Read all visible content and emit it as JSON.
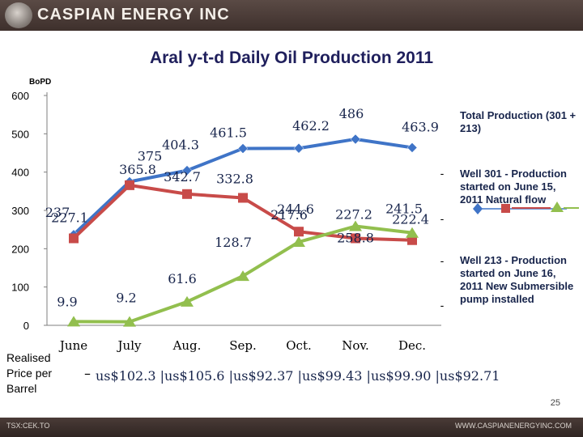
{
  "header": {
    "company": "CASPIAN ENERGY INC"
  },
  "footer": {
    "ticker": "TSX:CEK.TO",
    "website": "WWW.CASPIANENERGYINC.COM",
    "page": "25"
  },
  "price": {
    "row_label": "Realised Price per Barrel",
    "separator": "–",
    "values": [
      "us$102.3",
      "us$105.6",
      "us$92.37",
      "us$99.43",
      "us$99.90",
      "us$92.71"
    ]
  },
  "notes": {
    "total": "Total Production (301 + 213)",
    "well301": "Well 301 - Production started on June 15, 2011 Natural flow",
    "well213": "Well 213 - Production started on June 16, 2011 New Submersible pump installed"
  },
  "colors": {
    "total": "#3f74c7",
    "well301": "#c84b49",
    "well213": "#92bf4e",
    "axis": "#7f7f7f",
    "title": "#1f1f5c",
    "label_text": "#17244b"
  },
  "chart_data": {
    "type": "line",
    "title": "Aral  y-t-d  Daily Oil Production 2011",
    "ylabel": "BoPD",
    "ylim": [
      0,
      600
    ],
    "yticks": [
      0,
      100,
      200,
      300,
      400,
      500,
      600
    ],
    "categories": [
      "June",
      "July",
      "Aug.",
      "Sep.",
      "Oct.",
      "Nov.",
      "Dec."
    ],
    "series": [
      {
        "name": "Total Production (301 + 213)",
        "values": [
          237,
          375,
          404.3,
          461.5,
          462.2,
          486,
          463.9
        ],
        "labels": [
          "237",
          "375",
          "404.3",
          "461.5",
          "462.2",
          "486",
          "463.9"
        ],
        "marker": "diamond",
        "color": "#3f74c7"
      },
      {
        "name": "Well 301",
        "values": [
          227.1,
          365.8,
          342.7,
          332.8,
          244.6,
          227.2,
          222.4
        ],
        "labels": [
          "227.1",
          "365.8",
          "342.7",
          "332.8",
          "244.6",
          "227.2",
          "222.4"
        ],
        "marker": "square",
        "color": "#c84b49"
      },
      {
        "name": "Well 213",
        "values": [
          9.9,
          9.2,
          61.6,
          128.7,
          217.6,
          258.8,
          241.5
        ],
        "labels": [
          "9.9",
          "9.2",
          "61.6",
          "128.7",
          "217.6",
          "258.8",
          "241.5"
        ],
        "marker": "triangle",
        "color": "#92bf4e"
      }
    ],
    "legend_labels": [
      "-",
      "-",
      "-",
      "-",
      "-"
    ]
  }
}
